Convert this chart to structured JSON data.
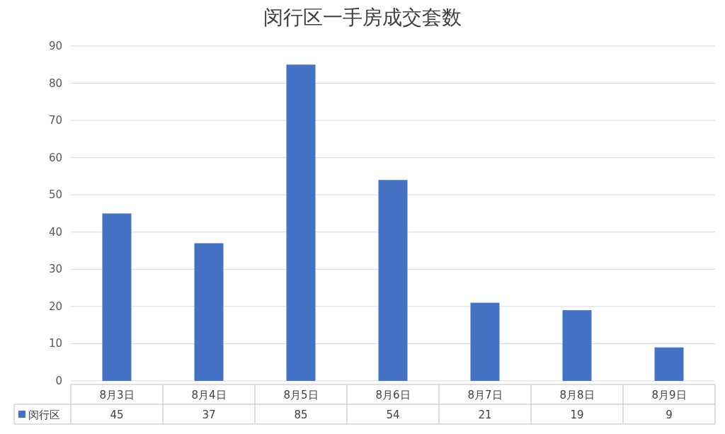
{
  "chart_data": {
    "type": "bar",
    "title": "闵行区一手房成交套数",
    "categories": [
      "8月3日",
      "8月4日",
      "8月5日",
      "8月6日",
      "8月7日",
      "8月8日",
      "8月9日"
    ],
    "series": [
      {
        "name": "闵行区",
        "color": "#4472c4",
        "values": [
          45,
          37,
          85,
          54,
          21,
          19,
          9
        ]
      }
    ],
    "ylim": [
      0,
      90
    ],
    "yticks": [
      0,
      10,
      20,
      30,
      40,
      50,
      60,
      70,
      80,
      90
    ],
    "grid": "y",
    "data_labels": true,
    "legend": "bottom"
  }
}
